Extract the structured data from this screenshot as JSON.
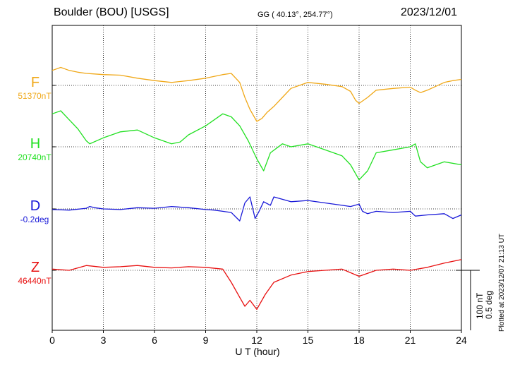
{
  "header": {
    "station": "Boulder (BOU)  [USGS]",
    "coords": "GG ( 40.13°, 254.77°)",
    "date": "2023/12/01"
  },
  "plotted_note": "Plotted at 2023/12/07 21:13 UT",
  "scale_bar": {
    "line1": "100 nT",
    "line2": "0.5 deg"
  },
  "chart_data": {
    "type": "line",
    "title": "Boulder (BOU)  [USGS]",
    "xlabel": "U T (hour)",
    "xlim": [
      0,
      24
    ],
    "xticks": [
      "0",
      "3",
      "6",
      "9",
      "12",
      "15",
      "18",
      "21",
      "24"
    ],
    "grid": true,
    "series": [
      {
        "name": "F",
        "baseline_label": "51370nT",
        "unit": "nT",
        "color": "#f0a818",
        "x": [
          0,
          0.5,
          1,
          1.5,
          2,
          3,
          4,
          5,
          6,
          7,
          8,
          9,
          9.5,
          10,
          10.5,
          11,
          11.3,
          11.6,
          12,
          12.3,
          12.6,
          13,
          13.5,
          14,
          14.5,
          15,
          16,
          17,
          17.5,
          17.8,
          18,
          18.5,
          19,
          20,
          21,
          21.3,
          21.6,
          22,
          23,
          23.5,
          24
        ],
        "y": [
          25,
          30,
          25,
          22,
          20,
          18,
          17,
          12,
          8,
          5,
          8,
          12,
          15,
          18,
          20,
          5,
          -20,
          -40,
          -60,
          -55,
          -45,
          -35,
          -20,
          -5,
          0,
          5,
          2,
          -2,
          -10,
          -25,
          -30,
          -20,
          -8,
          -5,
          -3,
          -8,
          -12,
          -8,
          5,
          8,
          10
        ]
      },
      {
        "name": "H",
        "baseline_label": "20740nT",
        "unit": "nT",
        "color": "#22e022",
        "x": [
          0,
          0.5,
          1,
          1.5,
          2,
          2.2,
          3,
          4,
          5,
          6,
          7,
          7.5,
          8,
          9,
          9.5,
          10,
          10.5,
          11,
          11.5,
          12,
          12.4,
          12.8,
          13.5,
          14,
          15,
          16,
          17,
          17.5,
          18,
          18.5,
          19,
          20,
          21,
          21.3,
          21.6,
          22,
          23,
          24
        ],
        "y": [
          55,
          60,
          45,
          30,
          10,
          5,
          15,
          25,
          28,
          15,
          5,
          8,
          20,
          35,
          45,
          55,
          50,
          35,
          10,
          -20,
          -40,
          -10,
          5,
          0,
          5,
          -5,
          -15,
          -30,
          -55,
          -40,
          -10,
          -5,
          0,
          5,
          -25,
          -35,
          -25,
          -30
        ]
      },
      {
        "name": "D",
        "baseline_label": "-0.2deg",
        "unit": "deg",
        "color": "#1818d8",
        "x": [
          0,
          1,
          2,
          2.2,
          2.5,
          3,
          4,
          5,
          6,
          7,
          8,
          9,
          9.5,
          10,
          10.5,
          11,
          11.3,
          11.6,
          11.9,
          12.1,
          12.4,
          12.8,
          13,
          13.5,
          14,
          15,
          16,
          17,
          17.5,
          18,
          18.2,
          18.5,
          19,
          20,
          21,
          21.3,
          22,
          23,
          23.5,
          24
        ],
        "y": [
          -0.005,
          -0.01,
          0.005,
          0.02,
          0.01,
          0.0,
          -0.005,
          0.01,
          0.005,
          0.02,
          0.01,
          -0.005,
          -0.01,
          -0.02,
          -0.03,
          -0.1,
          0.05,
          0.1,
          -0.08,
          -0.03,
          0.06,
          0.03,
          0.1,
          0.08,
          0.06,
          0.07,
          0.05,
          0.03,
          0.02,
          0.04,
          -0.02,
          -0.04,
          -0.02,
          -0.03,
          -0.02,
          -0.06,
          -0.05,
          -0.04,
          -0.08,
          -0.05
        ]
      },
      {
        "name": "Z",
        "baseline_label": "46440nT",
        "unit": "nT",
        "color": "#e81010",
        "x": [
          0,
          1,
          2,
          3,
          4,
          5,
          6,
          7,
          8,
          9,
          10,
          10.5,
          11,
          11.3,
          11.6,
          12,
          12.5,
          13,
          14,
          15,
          16,
          17,
          18,
          18.5,
          19,
          20,
          21,
          22,
          23,
          24
        ],
        "y": [
          2,
          0,
          8,
          5,
          6,
          8,
          5,
          4,
          6,
          5,
          2,
          -20,
          -45,
          -60,
          -50,
          -65,
          -40,
          -20,
          -8,
          -2,
          0,
          2,
          -10,
          -5,
          0,
          2,
          0,
          5,
          12,
          18
        ]
      }
    ]
  }
}
